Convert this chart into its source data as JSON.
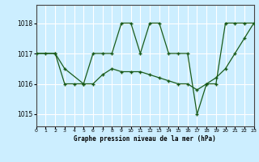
{
  "title": "Graphe pression niveau de la mer (hPa)",
  "bg_color": "#cceeff",
  "grid_color": "#ffffff",
  "line_color": "#1a5c1a",
  "xlim": [
    0,
    23
  ],
  "ylim": [
    1014.6,
    1018.6
  ],
  "yticks": [
    1015,
    1016,
    1017,
    1018
  ],
  "xticks": [
    0,
    1,
    2,
    3,
    4,
    5,
    6,
    7,
    8,
    9,
    10,
    11,
    12,
    13,
    14,
    15,
    16,
    17,
    18,
    19,
    20,
    21,
    22,
    23
  ],
  "series1_x": [
    0,
    1,
    2,
    3,
    4,
    5,
    6,
    7,
    8,
    9,
    10,
    11,
    12,
    13,
    14,
    15,
    16,
    17,
    18,
    19,
    20,
    21,
    22,
    23
  ],
  "series1_y": [
    1017.0,
    1017.0,
    1017.0,
    1016.0,
    1016.0,
    1016.0,
    1017.0,
    1017.0,
    1017.0,
    1018.0,
    1018.0,
    1017.0,
    1018.0,
    1018.0,
    1017.0,
    1017.0,
    1017.0,
    1015.0,
    1016.0,
    1016.0,
    1018.0,
    1018.0,
    1018.0,
    1018.0
  ],
  "series2_x": [
    0,
    2,
    3,
    5,
    6,
    7,
    8,
    9,
    10,
    11,
    12,
    13,
    14,
    15,
    16,
    17,
    18,
    19,
    20,
    21,
    22,
    23
  ],
  "series2_y": [
    1017.0,
    1017.0,
    1016.5,
    1016.0,
    1016.0,
    1016.3,
    1016.5,
    1016.4,
    1016.4,
    1016.4,
    1016.3,
    1016.2,
    1016.1,
    1016.0,
    1016.0,
    1015.8,
    1016.0,
    1016.2,
    1016.5,
    1017.0,
    1017.5,
    1018.0
  ]
}
